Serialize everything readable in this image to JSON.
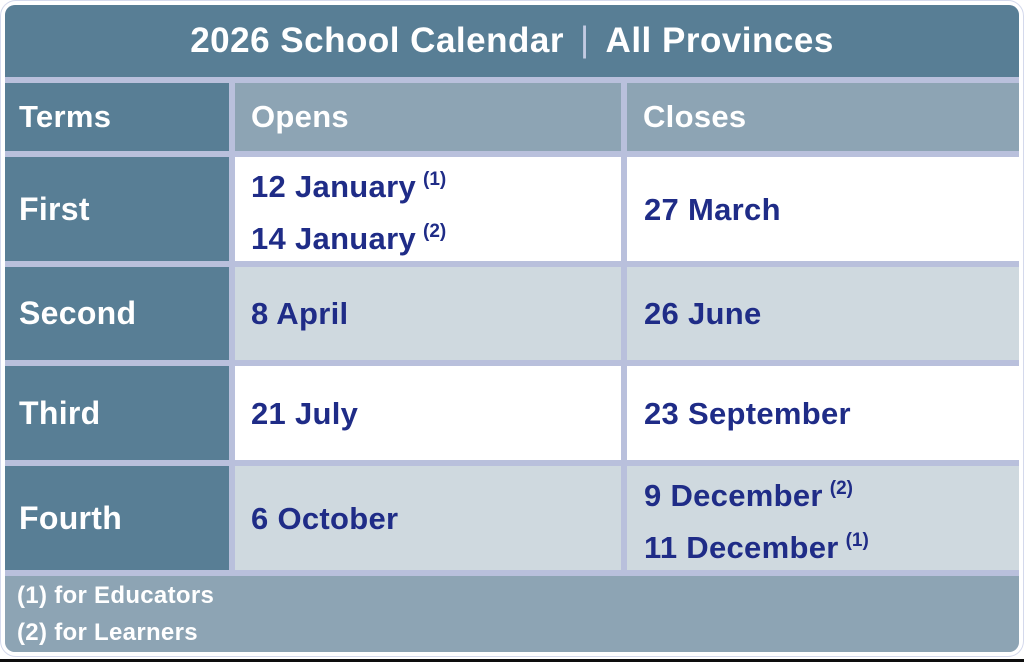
{
  "header": {
    "title_main": "2026 School Calendar",
    "title_separator": "|",
    "title_suffix": "All Provinces"
  },
  "columns": {
    "terms": "Terms",
    "opens": "Opens",
    "closes": "Closes"
  },
  "rows": [
    {
      "term": "First",
      "opens": [
        {
          "date": "12 January",
          "note": "(1)"
        },
        {
          "date": "14 January",
          "note": "(2)"
        }
      ],
      "closes": [
        {
          "date": "27 March",
          "note": ""
        }
      ]
    },
    {
      "term": "Second",
      "opens": [
        {
          "date": "8 April",
          "note": ""
        }
      ],
      "closes": [
        {
          "date": "26 June",
          "note": ""
        }
      ]
    },
    {
      "term": "Third",
      "opens": [
        {
          "date": "21 July",
          "note": ""
        }
      ],
      "closes": [
        {
          "date": "23 September",
          "note": ""
        }
      ]
    },
    {
      "term": "Fourth",
      "opens": [
        {
          "date": "6 October",
          "note": ""
        }
      ],
      "closes": [
        {
          "date": "9 December",
          "note": "(2)"
        },
        {
          "date": "11 December",
          "note": "(1)"
        }
      ]
    }
  ],
  "footnotes": {
    "educators": "(1) for Educators",
    "learners": "(2) for Learners"
  },
  "colors": {
    "slate_blue": "#587E95",
    "header_light_blue": "#8DA4B4",
    "row_light_blue": "#CFD9DF",
    "row_white": "#FFFFFF",
    "gridline_lavender": "#B9C0DC",
    "date_text_navy": "#1F2C87",
    "header_text_white": "#FFFFFF"
  }
}
